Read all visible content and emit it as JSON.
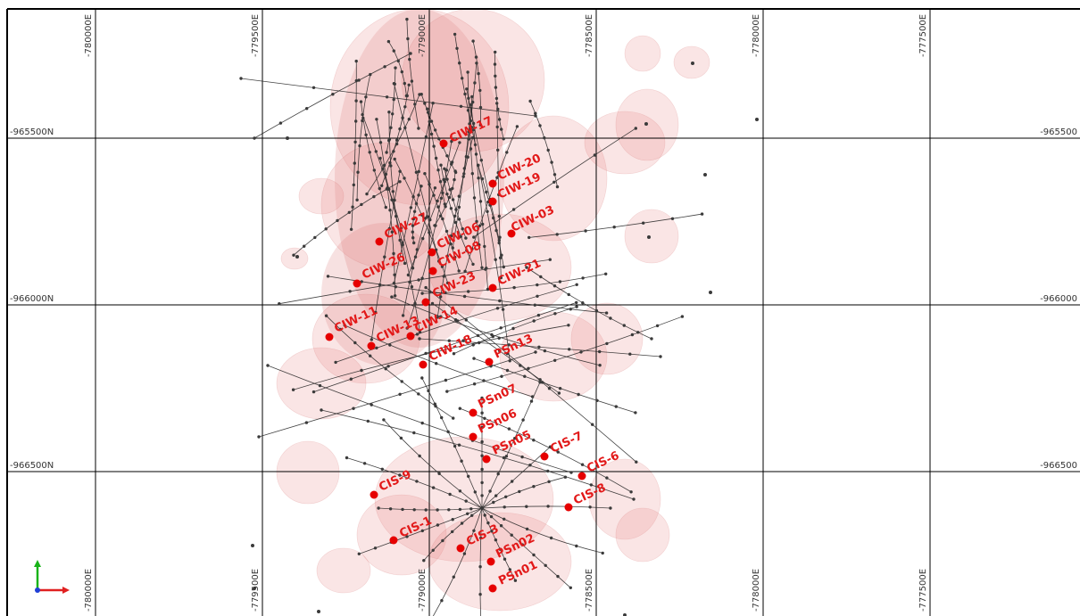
{
  "map": {
    "easting_labels": [
      "-780000E",
      "-779500E",
      "-779000E",
      "-778500E",
      "-778000E",
      "-777500E"
    ],
    "northing_labels_left": [
      "-965500N",
      "-966000N",
      "-966500N"
    ],
    "northing_labels_right": [
      "-965500",
      "-966000",
      "-966500"
    ],
    "wells": [
      {
        "label": "CIW-17"
      },
      {
        "label": "CIW-20"
      },
      {
        "label": "CIW-19"
      },
      {
        "label": "CIW-03"
      },
      {
        "label": "CIW-27"
      },
      {
        "label": "CIW-06"
      },
      {
        "label": "CIW-08"
      },
      {
        "label": "CIW-26"
      },
      {
        "label": "CIW-21"
      },
      {
        "label": "CIW-23"
      },
      {
        "label": "CIW-11"
      },
      {
        "label": "CIW-14"
      },
      {
        "label": "CIW-13"
      },
      {
        "label": "CIW-18"
      },
      {
        "label": "PSn13"
      },
      {
        "label": "PSn07"
      },
      {
        "label": "PSn06"
      },
      {
        "label": "PSn05"
      },
      {
        "label": "CIS-7"
      },
      {
        "label": "CIS-6"
      },
      {
        "label": "CIS-9"
      },
      {
        "label": "CIS-8"
      },
      {
        "label": "CIS-1"
      },
      {
        "label": "CIS-3"
      },
      {
        "label": "PSn02"
      },
      {
        "label": "PSn01"
      }
    ],
    "colors": {
      "well": "#e60000",
      "halo": "#e88a8a",
      "trace": "#222222",
      "axis_x": "#e02020",
      "axis_y": "#19b319",
      "axis_z": "#1f3fd6"
    }
  }
}
